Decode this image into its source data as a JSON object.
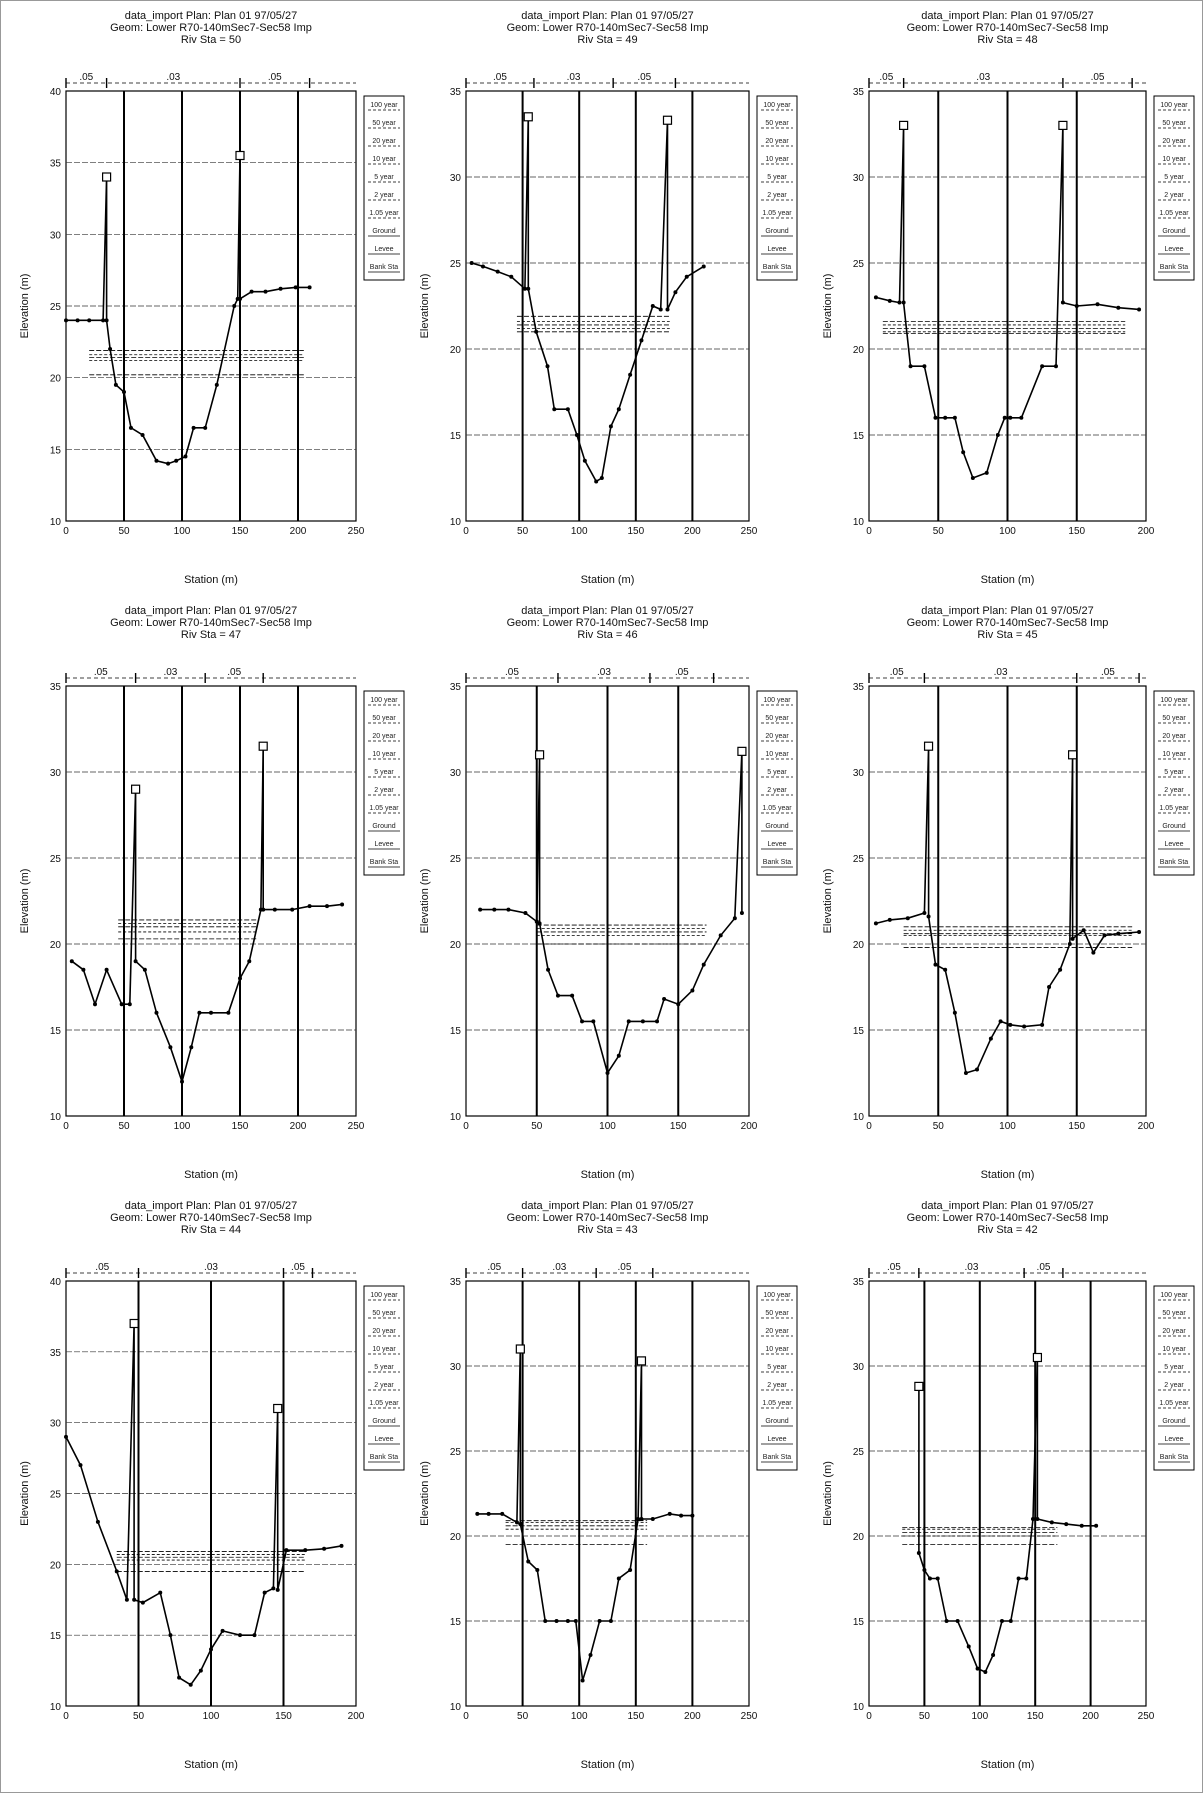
{
  "chart_data": [
    {
      "type": "line",
      "title": [
        "data_import    Plan: Plan 01    97/05/27",
        "Geom: Lower R70-140mSec7-Sec58 Imp",
        "Riv Sta = 50"
      ],
      "xlabel": "Station (m)",
      "ylabel": "Elevation (m)",
      "xlim": [
        0,
        250
      ],
      "ylim": [
        10,
        40
      ],
      "xticks": [
        0,
        50,
        100,
        150,
        200,
        250
      ],
      "yticks": [
        10,
        15,
        20,
        25,
        30,
        35,
        40
      ],
      "mannings_n": [
        "05",
        "03",
        "05"
      ],
      "n_breaks": [
        35,
        150,
        210
      ],
      "vlines": [
        50,
        100,
        150,
        200
      ],
      "ground": [
        [
          0,
          24
        ],
        [
          10,
          24
        ],
        [
          20,
          24
        ],
        [
          32,
          24
        ],
        [
          35,
          34
        ],
        [
          35,
          24
        ],
        [
          38,
          22
        ],
        [
          43,
          19.5
        ],
        [
          50,
          19
        ],
        [
          56,
          16.5
        ],
        [
          66,
          16
        ],
        [
          78,
          14.2
        ],
        [
          88,
          14
        ],
        [
          95,
          14.2
        ],
        [
          103,
          14.5
        ],
        [
          110,
          16.5
        ],
        [
          120,
          16.5
        ],
        [
          130,
          19.5
        ],
        [
          145,
          25
        ],
        [
          148,
          25.5
        ],
        [
          150,
          35.5
        ],
        [
          150,
          25.5
        ],
        [
          160,
          26
        ],
        [
          172,
          26
        ],
        [
          185,
          26.2
        ],
        [
          198,
          26.3
        ],
        [
          210,
          26.3
        ]
      ],
      "water_surfaces": [
        21.9,
        21.6,
        21.4,
        21.2,
        20.2
      ]
    },
    {
      "type": "line",
      "title": [
        "data_import    Plan: Plan 01    97/05/27",
        "Geom: Lower R70-140mSec7-Sec58 Imp",
        "Riv Sta = 49"
      ],
      "xlabel": "Station (m)",
      "ylabel": "Elevation (m)",
      "xlim": [
        0,
        250
      ],
      "ylim": [
        10,
        35
      ],
      "xticks": [
        0,
        50,
        100,
        150,
        200,
        250
      ],
      "yticks": [
        10,
        15,
        20,
        25,
        30,
        35
      ],
      "mannings_n": [
        "05",
        "03",
        "05"
      ],
      "n_breaks": [
        60,
        130,
        185
      ],
      "vlines": [
        50,
        100,
        150,
        200
      ],
      "ground": [
        [
          5,
          25
        ],
        [
          15,
          24.8
        ],
        [
          28,
          24.5
        ],
        [
          40,
          24.2
        ],
        [
          52,
          23.5
        ],
        [
          55,
          33.5
        ],
        [
          55,
          23.5
        ],
        [
          62,
          21
        ],
        [
          72,
          19
        ],
        [
          78,
          16.5
        ],
        [
          90,
          16.5
        ],
        [
          98,
          15
        ],
        [
          105,
          13.5
        ],
        [
          115,
          12.3
        ],
        [
          120,
          12.5
        ],
        [
          128,
          15.5
        ],
        [
          135,
          16.5
        ],
        [
          145,
          18.5
        ],
        [
          155,
          20.5
        ],
        [
          165,
          22.5
        ],
        [
          172,
          22.3
        ],
        [
          178,
          33.3
        ],
        [
          178,
          22.3
        ],
        [
          185,
          23.3
        ],
        [
          195,
          24.2
        ],
        [
          210,
          24.8
        ]
      ],
      "water_surfaces": [
        21.9,
        21.6,
        21.4,
        21.2,
        21
      ]
    },
    {
      "type": "line",
      "title": [
        "data_import    Plan: Plan 01    97/05/27",
        "Geom: Lower R70-140mSec7-Sec58 Imp",
        "Riv Sta = 48"
      ],
      "xlabel": "Station (m)",
      "ylabel": "Elevation (m)",
      "xlim": [
        0,
        200
      ],
      "ylim": [
        10,
        35
      ],
      "xticks": [
        0,
        50,
        100,
        150,
        200
      ],
      "yticks": [
        10,
        15,
        20,
        25,
        30,
        35
      ],
      "mannings_n": [
        "05",
        "03",
        "05"
      ],
      "n_breaks": [
        25,
        140,
        190
      ],
      "vlines": [
        50,
        100,
        150
      ],
      "ground": [
        [
          5,
          23
        ],
        [
          15,
          22.8
        ],
        [
          22,
          22.7
        ],
        [
          25,
          33
        ],
        [
          25,
          22.7
        ],
        [
          30,
          19
        ],
        [
          40,
          19
        ],
        [
          48,
          16
        ],
        [
          55,
          16
        ],
        [
          62,
          16
        ],
        [
          68,
          14
        ],
        [
          75,
          12.5
        ],
        [
          85,
          12.8
        ],
        [
          93,
          15
        ],
        [
          98,
          16
        ],
        [
          102,
          16
        ],
        [
          110,
          16
        ],
        [
          125,
          19
        ],
        [
          135,
          19
        ],
        [
          140,
          33
        ],
        [
          140,
          22.7
        ],
        [
          150,
          22.5
        ],
        [
          165,
          22.6
        ],
        [
          180,
          22.4
        ],
        [
          195,
          22.3
        ]
      ],
      "water_surfaces": [
        21.6,
        21.4,
        21.2,
        21,
        20.9
      ]
    },
    {
      "type": "line",
      "title": [
        "data_import    Plan: Plan 01    97/05/27",
        "Geom: Lower R70-140mSec7-Sec58 Imp",
        "Riv Sta = 47"
      ],
      "xlabel": "Station (m)",
      "ylabel": "Elevation (m)",
      "xlim": [
        0,
        250
      ],
      "ylim": [
        10,
        35
      ],
      "xticks": [
        0,
        50,
        100,
        150,
        200,
        250
      ],
      "yticks": [
        10,
        15,
        20,
        25,
        30,
        35
      ],
      "mannings_n": [
        "05",
        "03",
        "05"
      ],
      "n_breaks": [
        60,
        120,
        170
      ],
      "vlines": [
        50,
        100,
        150,
        200
      ],
      "ground": [
        [
          5,
          19
        ],
        [
          15,
          18.5
        ],
        [
          25,
          16.5
        ],
        [
          35,
          18.5
        ],
        [
          48,
          16.5
        ],
        [
          55,
          16.5
        ],
        [
          60,
          29
        ],
        [
          60,
          19
        ],
        [
          68,
          18.5
        ],
        [
          78,
          16
        ],
        [
          90,
          14
        ],
        [
          100,
          12
        ],
        [
          108,
          14
        ],
        [
          115,
          16
        ],
        [
          125,
          16
        ],
        [
          140,
          16
        ],
        [
          150,
          18
        ],
        [
          158,
          19
        ],
        [
          168,
          22
        ],
        [
          170,
          31.5
        ],
        [
          170,
          22
        ],
        [
          180,
          22
        ],
        [
          195,
          22
        ],
        [
          210,
          22.2
        ],
        [
          225,
          22.2
        ],
        [
          238,
          22.3
        ]
      ],
      "water_surfaces": [
        21.4,
        21.2,
        21,
        20.7,
        20.3
      ]
    },
    {
      "type": "line",
      "title": [
        "data_import    Plan: Plan 01    97/05/27",
        "Geom: Lower R70-140mSec7-Sec58 Imp",
        "Riv Sta = 46"
      ],
      "xlabel": "Station (m)",
      "ylabel": "Elevation (m)",
      "xlim": [
        0,
        200
      ],
      "ylim": [
        10,
        35
      ],
      "xticks": [
        0,
        50,
        100,
        150,
        200
      ],
      "yticks": [
        10,
        15,
        20,
        25,
        30,
        35
      ],
      "mannings_n": [
        "05",
        "03",
        "05"
      ],
      "n_breaks": [
        65,
        130,
        175
      ],
      "vlines": [
        50,
        100,
        150
      ],
      "ground": [
        [
          10,
          22
        ],
        [
          20,
          22
        ],
        [
          30,
          22
        ],
        [
          42,
          21.8
        ],
        [
          50,
          21.3
        ],
        [
          52,
          31
        ],
        [
          52,
          21.2
        ],
        [
          58,
          18.5
        ],
        [
          65,
          17
        ],
        [
          75,
          17
        ],
        [
          82,
          15.5
        ],
        [
          90,
          15.5
        ],
        [
          100,
          12.5
        ],
        [
          108,
          13.5
        ],
        [
          115,
          15.5
        ],
        [
          125,
          15.5
        ],
        [
          135,
          15.5
        ],
        [
          140,
          16.8
        ],
        [
          150,
          16.5
        ],
        [
          160,
          17.3
        ],
        [
          168,
          18.8
        ],
        [
          180,
          20.5
        ],
        [
          190,
          21.5
        ],
        [
          195,
          31.2
        ],
        [
          195,
          21.8
        ]
      ],
      "water_surfaces": [
        21.1,
        20.9,
        20.7,
        20.5,
        20
      ]
    },
    {
      "type": "line",
      "title": [
        "data_import    Plan: Plan 01    97/05/27",
        "Geom: Lower R70-140mSec7-Sec58 Imp",
        "Riv Sta = 45"
      ],
      "xlabel": "Station (m)",
      "ylabel": "Elevation (m)",
      "xlim": [
        0,
        200
      ],
      "ylim": [
        10,
        35
      ],
      "xticks": [
        0,
        50,
        100,
        150,
        200
      ],
      "yticks": [
        10,
        15,
        20,
        25,
        30,
        35
      ],
      "mannings_n": [
        "05",
        "03",
        "05"
      ],
      "n_breaks": [
        40,
        150,
        195
      ],
      "vlines": [
        50,
        100,
        150
      ],
      "ground": [
        [
          5,
          21.2
        ],
        [
          15,
          21.4
        ],
        [
          28,
          21.5
        ],
        [
          40,
          21.8
        ],
        [
          43,
          31.5
        ],
        [
          43,
          21.6
        ],
        [
          48,
          18.8
        ],
        [
          55,
          18.5
        ],
        [
          62,
          16
        ],
        [
          70,
          12.5
        ],
        [
          78,
          12.7
        ],
        [
          88,
          14.5
        ],
        [
          95,
          15.5
        ],
        [
          102,
          15.3
        ],
        [
          112,
          15.2
        ],
        [
          125,
          15.3
        ],
        [
          130,
          17.5
        ],
        [
          138,
          18.5
        ],
        [
          145,
          20
        ],
        [
          147,
          31
        ],
        [
          147,
          20.3
        ],
        [
          155,
          20.8
        ],
        [
          162,
          19.5
        ],
        [
          170,
          20.5
        ],
        [
          180,
          20.6
        ],
        [
          195,
          20.7
        ]
      ],
      "water_surfaces": [
        21,
        20.8,
        20.6,
        20.5,
        19.8
      ]
    },
    {
      "type": "line",
      "title": [
        "data_import    Plan: Plan 01    97/05/27",
        "Geom: Lower R70-140mSec7-Sec58 Imp",
        "Riv Sta = 44"
      ],
      "xlabel": "Station (m)",
      "ylabel": "Elevation (m)",
      "xlim": [
        0,
        200
      ],
      "ylim": [
        10,
        40
      ],
      "xticks": [
        0,
        50,
        100,
        150,
        200
      ],
      "yticks": [
        10,
        15,
        20,
        25,
        30,
        35,
        40
      ],
      "mannings_n": [
        "05",
        "03",
        "05"
      ],
      "n_breaks": [
        50,
        150,
        170
      ],
      "vlines": [
        50,
        100,
        150
      ],
      "ground": [
        [
          0,
          29
        ],
        [
          10,
          27
        ],
        [
          22,
          23
        ],
        [
          35,
          19.5
        ],
        [
          42,
          17.5
        ],
        [
          47,
          37
        ],
        [
          47,
          17.5
        ],
        [
          53,
          17.3
        ],
        [
          65,
          18
        ],
        [
          72,
          15
        ],
        [
          78,
          12
        ],
        [
          86,
          11.5
        ],
        [
          93,
          12.5
        ],
        [
          100,
          14
        ],
        [
          108,
          15.3
        ],
        [
          120,
          15
        ],
        [
          130,
          15
        ],
        [
          137,
          18
        ],
        [
          143,
          18.3
        ],
        [
          146,
          31
        ],
        [
          146,
          18.2
        ],
        [
          152,
          21
        ],
        [
          165,
          21
        ],
        [
          178,
          21.1
        ],
        [
          190,
          21.3
        ]
      ],
      "water_surfaces": [
        20.9,
        20.7,
        20.5,
        20.3,
        19.5
      ]
    },
    {
      "type": "line",
      "title": [
        "data_import    Plan: Plan 01    97/05/27",
        "Geom: Lower R70-140mSec7-Sec58 Imp",
        "Riv Sta = 43"
      ],
      "xlabel": "Station (m)",
      "ylabel": "Elevation (m)",
      "xlim": [
        0,
        250
      ],
      "ylim": [
        10,
        35
      ],
      "xticks": [
        0,
        50,
        100,
        150,
        200,
        250
      ],
      "yticks": [
        10,
        15,
        20,
        25,
        30,
        35
      ],
      "mannings_n": [
        "05",
        "03",
        "05"
      ],
      "n_breaks": [
        50,
        115,
        165
      ],
      "vlines": [
        50,
        100,
        150,
        200
      ],
      "ground": [
        [
          10,
          21.3
        ],
        [
          20,
          21.3
        ],
        [
          32,
          21.3
        ],
        [
          45,
          20.8
        ],
        [
          48,
          31
        ],
        [
          48,
          20.7
        ],
        [
          55,
          18.5
        ],
        [
          63,
          18
        ],
        [
          70,
          15
        ],
        [
          80,
          15
        ],
        [
          90,
          15
        ],
        [
          97,
          15
        ],
        [
          103,
          11.5
        ],
        [
          110,
          13
        ],
        [
          118,
          15
        ],
        [
          128,
          15
        ],
        [
          135,
          17.5
        ],
        [
          145,
          18
        ],
        [
          152,
          21
        ],
        [
          155,
          30.3
        ],
        [
          155,
          21
        ],
        [
          165,
          21
        ],
        [
          180,
          21.3
        ],
        [
          190,
          21.2
        ],
        [
          200,
          21.2
        ]
      ],
      "water_surfaces": [
        20.9,
        20.8,
        20.6,
        20.4,
        19.5
      ]
    },
    {
      "type": "line",
      "title": [
        "data_import    Plan: Plan 01    97/05/27",
        "Geom: Lower R70-140mSec7-Sec58 Imp",
        "Riv Sta = 42"
      ],
      "xlabel": "Station (m)",
      "ylabel": "Elevation (m)",
      "xlim": [
        0,
        250
      ],
      "ylim": [
        10,
        35
      ],
      "xticks": [
        0,
        50,
        100,
        150,
        200,
        250
      ],
      "yticks": [
        10,
        15,
        20,
        25,
        30,
        35
      ],
      "mannings_n": [
        "05",
        "03",
        "05"
      ],
      "n_breaks": [
        45,
        140,
        175
      ],
      "vlines": [
        50,
        100,
        150,
        200
      ],
      "ground": [
        [
          45,
          28.8
        ],
        [
          45,
          19
        ],
        [
          50,
          18
        ],
        [
          55,
          17.5
        ],
        [
          62,
          17.5
        ],
        [
          70,
          15
        ],
        [
          80,
          15
        ],
        [
          90,
          13.5
        ],
        [
          98,
          12.2
        ],
        [
          105,
          12
        ],
        [
          112,
          13
        ],
        [
          120,
          15
        ],
        [
          128,
          15
        ],
        [
          135,
          17.5
        ],
        [
          142,
          17.5
        ],
        [
          148,
          21
        ],
        [
          152,
          30.5
        ],
        [
          152,
          21
        ],
        [
          165,
          20.8
        ],
        [
          178,
          20.7
        ],
        [
          192,
          20.6
        ],
        [
          205,
          20.6
        ]
      ],
      "water_surfaces": [
        20.5,
        20.4,
        20.2,
        20,
        19.5
      ]
    }
  ],
  "legend_items": [
    "100 year",
    "50 year",
    "20 year",
    "10 year",
    "5 year",
    "2 year",
    "1.05 year",
    "Ground",
    "Levee",
    "Bank Sta"
  ]
}
